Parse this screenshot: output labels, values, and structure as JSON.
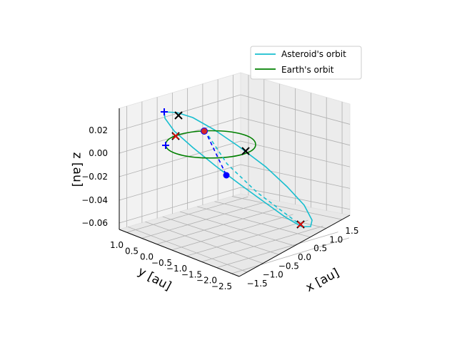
{
  "chart_data": {
    "type": "line",
    "projection": "3d",
    "title": "",
    "xlabel": "x [au]",
    "ylabel": "y [au]",
    "zlabel": "z [au]",
    "x_ticks": [
      "−1.5",
      "−1.0",
      "−0.5",
      "0.0",
      "0.5",
      "1.0",
      "1.5"
    ],
    "y_ticks": [
      "1.0",
      "0.5",
      "0.0",
      "−0.5",
      "−1.0",
      "−1.5",
      "−2.0",
      "−2.5"
    ],
    "z_ticks": [
      "0.02",
      "0.00",
      "−0.02",
      "−0.04",
      "−0.06"
    ],
    "grid": true,
    "legend_position": "top-right",
    "series": [
      {
        "name": "Asteroid's orbit",
        "color": "#17becf",
        "style": "solid+dashed",
        "shape": "tilted ellipse"
      },
      {
        "name": "Earth's orbit",
        "color": "#008000",
        "style": "solid",
        "shape": "circle, radius 1"
      }
    ],
    "markers": [
      {
        "symbol": "blue-plus",
        "color": "#0000ff",
        "count": 2
      },
      {
        "symbol": "black-x",
        "color": "#000000",
        "count": 4
      },
      {
        "symbol": "red-x",
        "color": "#ff0000",
        "count": 1
      },
      {
        "symbol": "blue-dot",
        "color": "#0000ff",
        "count": 1
      },
      {
        "symbol": "red-dot",
        "color": "#ff0000",
        "count": 1
      }
    ]
  }
}
